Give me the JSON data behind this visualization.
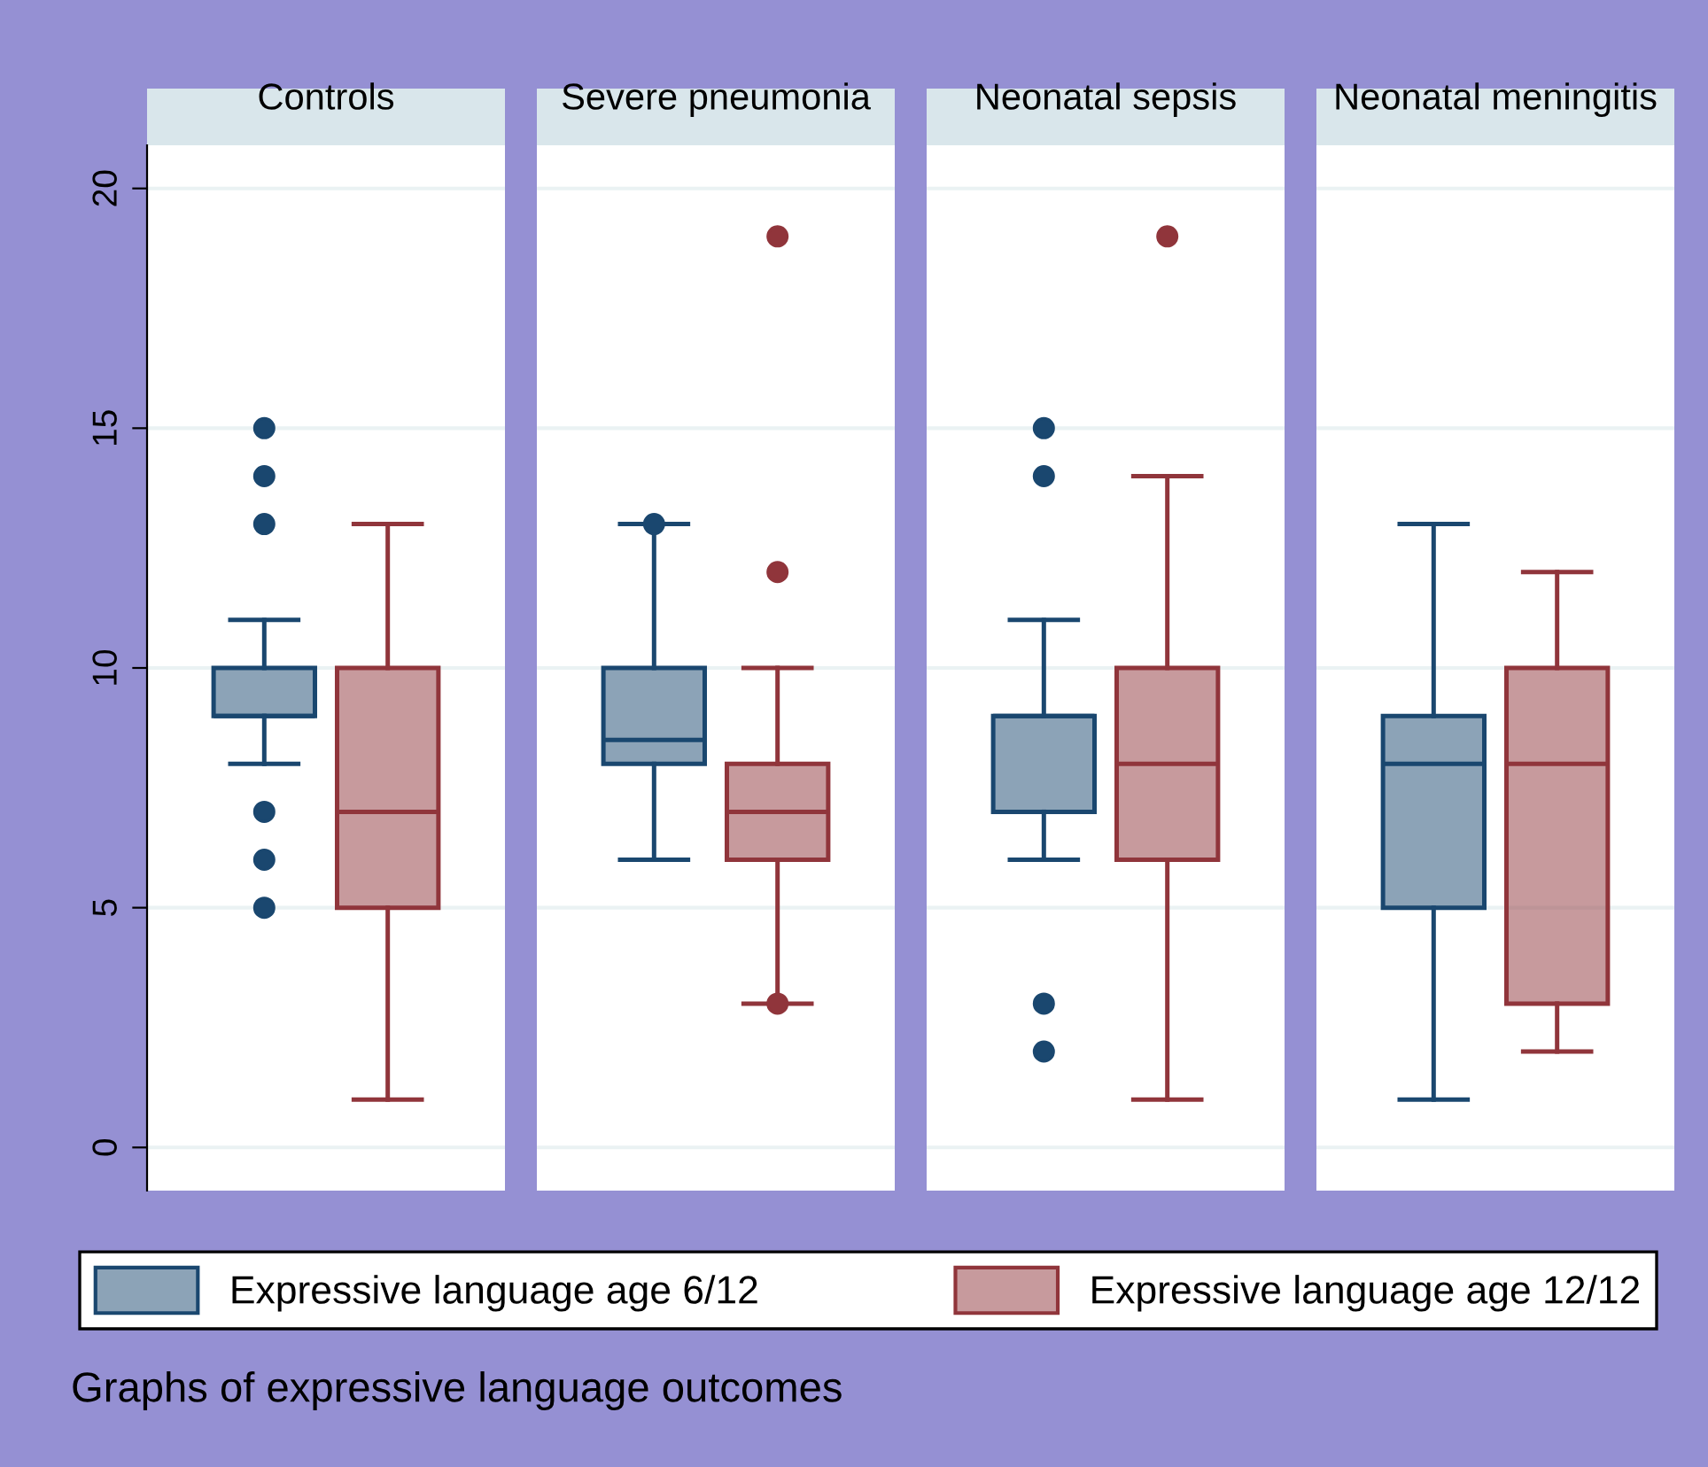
{
  "chart_data": {
    "type": "box",
    "categories": [
      "Controls",
      "Severe pneumonia",
      "Neonatal sepsis",
      "Neonatal meningitis"
    ],
    "ylim": [
      -0.9,
      20.9
    ],
    "yticks": [
      0,
      5,
      10,
      15,
      20
    ],
    "grid": "y",
    "legend": "bottom",
    "marker": "circle",
    "series": [
      {
        "name": "Expressive language age 6/12",
        "color": "#1a476f",
        "boxes": [
          {
            "low": 8,
            "q1": 9,
            "median": 9,
            "q3": 10,
            "high": 11,
            "outliers": [
              15,
              14,
              13,
              7,
              6,
              5
            ]
          },
          {
            "low": 6,
            "q1": 8,
            "median": 8.5,
            "q3": 10,
            "high": 13,
            "outliers": [
              13
            ]
          },
          {
            "low": 6,
            "q1": 7,
            "median": 9,
            "q3": 9,
            "high": 11,
            "outliers": [
              15,
              14,
              3,
              2
            ]
          },
          {
            "low": 1,
            "q1": 5,
            "median": 8,
            "q3": 9,
            "high": 13
          }
        ]
      },
      {
        "name": "Expressive language age 12/12",
        "color": "#90353b",
        "boxes": [
          {
            "low": 1,
            "q1": 5,
            "median": 7,
            "q3": 10,
            "high": 13
          },
          {
            "low": 3,
            "q1": 6,
            "median": 7,
            "q3": 8,
            "high": 10,
            "outliers": [
              19,
              12,
              3
            ]
          },
          {
            "low": 1,
            "q1": 6,
            "median": 8,
            "q3": 10,
            "high": 14,
            "outliers": [
              19
            ]
          },
          {
            "low": 2,
            "q1": 3,
            "median": 8,
            "q3": 10,
            "high": 12
          }
        ]
      }
    ],
    "annotations": [
      "Graphs of expressive language outcomes"
    ]
  }
}
